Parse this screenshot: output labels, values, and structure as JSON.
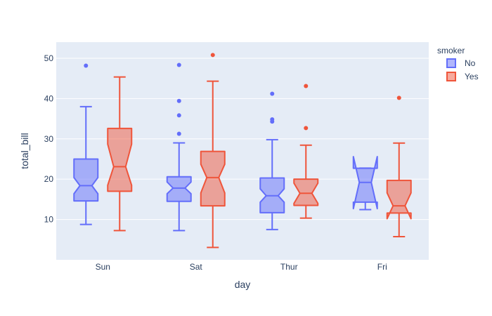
{
  "chart_data": {
    "type": "box",
    "notched": true,
    "categories": [
      "Sun",
      "Sat",
      "Thur",
      "Fri"
    ],
    "xlabel": "day",
    "ylabel": "total_bill",
    "ylim": [
      0,
      54
    ],
    "yticks": [
      10,
      20,
      30,
      40,
      50
    ],
    "grid": true,
    "legend": {
      "title": "smoker",
      "placement": "right"
    },
    "series": [
      {
        "name": "No",
        "color": "#636efa",
        "boxes": [
          {
            "category": "Sun",
            "lowerfence": 8.77,
            "q1": 14.6,
            "median": 18.4,
            "q3": 25.0,
            "upperfence": 38.0,
            "notch_low": 16.4,
            "notch_high": 20.4,
            "outliers": [
              48.17
            ]
          },
          {
            "category": "Sat",
            "lowerfence": 7.25,
            "q1": 14.5,
            "median": 17.8,
            "q3": 20.6,
            "upperfence": 29.0,
            "notch_low": 16.4,
            "notch_high": 19.3,
            "outliers": [
              31.27,
              35.83,
              39.42,
              48.33
            ]
          },
          {
            "category": "Thur",
            "lowerfence": 7.51,
            "q1": 11.7,
            "median": 15.9,
            "q3": 20.3,
            "upperfence": 29.8,
            "notch_low": 14.3,
            "notch_high": 17.6,
            "outliers": [
              34.3,
              34.83,
              41.19
            ]
          },
          {
            "category": "Fri",
            "lowerfence": 12.46,
            "q1": 14.3,
            "median": 19.2,
            "q3": 22.7,
            "upperfence": 22.75,
            "notch_low": 12.7,
            "notch_high": 25.6,
            "outliers": []
          }
        ]
      },
      {
        "name": "Yes",
        "color": "#ef553b",
        "boxes": [
          {
            "category": "Sun",
            "lowerfence": 7.25,
            "q1": 17.0,
            "median": 23.1,
            "q3": 32.6,
            "upperfence": 45.35,
            "notch_low": 18.5,
            "notch_high": 28.7,
            "outliers": []
          },
          {
            "category": "Sat",
            "lowerfence": 3.07,
            "q1": 13.4,
            "median": 20.4,
            "q3": 26.9,
            "upperfence": 44.3,
            "notch_low": 16.6,
            "notch_high": 23.7,
            "outliers": [
              50.81
            ]
          },
          {
            "category": "Thur",
            "lowerfence": 10.34,
            "q1": 13.5,
            "median": 16.5,
            "q3": 20.0,
            "upperfence": 28.44,
            "notch_low": 14.0,
            "notch_high": 19.0,
            "outliers": [
              32.68,
              43.11
            ]
          },
          {
            "category": "Fri",
            "lowerfence": 5.75,
            "q1": 11.6,
            "median": 13.4,
            "q3": 19.7,
            "upperfence": 28.97,
            "notch_low": 10.2,
            "notch_high": 16.6,
            "outliers": [
              40.17
            ]
          }
        ]
      }
    ]
  }
}
